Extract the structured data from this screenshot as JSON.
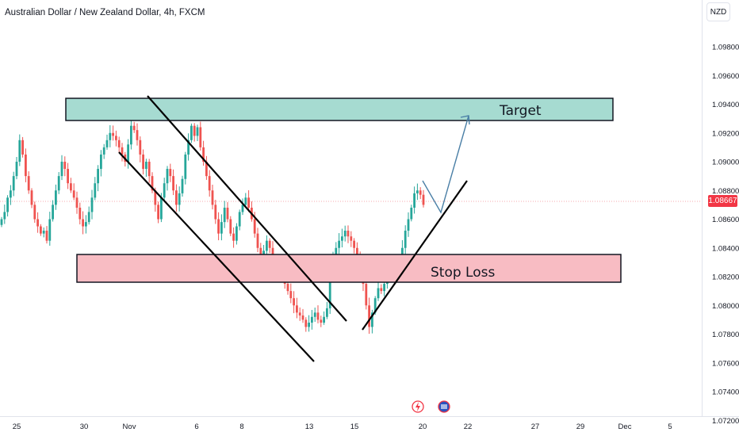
{
  "header": {
    "title": "Australian Dollar / New Zealand Dollar, 4h, FXCM",
    "currency": "NZD"
  },
  "current_price": "1.08667",
  "annotations": {
    "target_label": "Target",
    "stop_loss_label": "Stop Loss"
  },
  "icons": {
    "event_icon": "lightning-icon",
    "flag_icon": "flag-icon"
  },
  "colors": {
    "up": "#26a69a",
    "down": "#ef5350",
    "target_zone": "#a6dbd1",
    "stop_zone": "#f8bcc3",
    "projection": "#4a7fa6"
  },
  "chart_data": {
    "type": "candlestick",
    "title": "Australian Dollar / New Zealand Dollar, 4h, FXCM",
    "y_ticks": [
      "1.09800",
      "1.09600",
      "1.09400",
      "1.09200",
      "1.09000",
      "1.08800",
      "1.08600",
      "1.08400",
      "1.08200",
      "1.08000",
      "1.07800",
      "1.07600",
      "1.07400",
      "1.07200"
    ],
    "ylim": [
      1.071,
      1.1
    ],
    "x_ticks": [
      "25",
      "30",
      "Nov",
      "6",
      "8",
      "13",
      "15",
      "20",
      "22",
      "27",
      "29",
      "Dec",
      "5"
    ],
    "close_series": [
      1.086,
      1.0865,
      1.0875,
      1.088,
      1.089,
      1.09,
      1.0915,
      1.0905,
      1.089,
      1.088,
      1.087,
      1.086,
      1.0855,
      1.085,
      1.0852,
      1.0845,
      1.086,
      1.087,
      1.088,
      1.089,
      1.09,
      1.0895,
      1.0885,
      1.088,
      1.0875,
      1.0868,
      1.086,
      1.0855,
      1.0858,
      1.0865,
      1.0875,
      1.0885,
      1.0895,
      1.0905,
      1.091,
      1.0915,
      1.092,
      1.0918,
      1.0915,
      1.091,
      1.0905,
      1.09,
      1.0912,
      1.0925,
      1.0922,
      1.0915,
      1.0905,
      1.0895,
      1.09,
      1.089,
      1.088,
      1.087,
      1.086,
      1.0875,
      1.0885,
      1.0895,
      1.089,
      1.088,
      1.087,
      1.0878,
      1.0888,
      1.0905,
      1.0915,
      1.0925,
      1.0918,
      1.0924,
      1.091,
      1.09,
      1.089,
      1.088,
      1.087,
      1.086,
      1.085,
      1.0858,
      1.0868,
      1.086,
      1.085,
      1.0845,
      1.0855,
      1.0865,
      1.087,
      1.0875,
      1.0868,
      1.086,
      1.085,
      1.084,
      1.0835,
      1.0838,
      1.0845,
      1.084,
      1.0832,
      1.0825,
      1.083,
      1.0822,
      1.0815,
      1.081,
      1.0805,
      1.08,
      1.0795,
      1.0793,
      1.079,
      1.0785,
      1.0788,
      1.0792,
      1.0795,
      1.079,
      1.0788,
      1.0792,
      1.0798,
      1.082,
      1.0835,
      1.084,
      1.0845,
      1.0848,
      1.0852,
      1.0848,
      1.0845,
      1.084,
      1.0832,
      1.0825,
      1.0815,
      1.08,
      1.0785,
      1.0795,
      1.0805,
      1.0812,
      1.081,
      1.0815,
      1.0822,
      1.0828,
      1.0825,
      1.0822,
      1.0828,
      1.084,
      1.0852,
      1.086,
      1.0868,
      1.0878,
      1.088,
      1.0877,
      1.087
    ],
    "target_zone": [
      1.0925,
      1.0941
    ],
    "stop_loss_zone": [
      1.0806,
      1.0826
    ]
  }
}
